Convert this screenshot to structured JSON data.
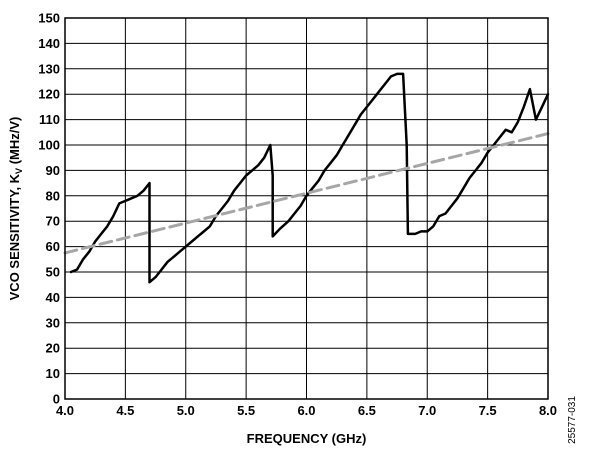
{
  "chart_data": {
    "type": "line",
    "title": "",
    "xlabel": "FREQUENCY (GHz)",
    "ylabel_main": "VCO SENSITIVITY, K",
    "ylabel_sub": "V",
    "ylabel_unit": " (MHz/V)",
    "xlim": [
      4.0,
      8.0
    ],
    "ylim": [
      0,
      150
    ],
    "x_ticks": [
      "4.0",
      "4.5",
      "5.0",
      "5.5",
      "6.0",
      "6.5",
      "7.0",
      "7.5",
      "8.0"
    ],
    "y_ticks": [
      "0",
      "10",
      "20",
      "30",
      "40",
      "50",
      "60",
      "70",
      "80",
      "90",
      "100",
      "110",
      "120",
      "130",
      "140",
      "150"
    ],
    "grid": true,
    "series": [
      {
        "style": "solid",
        "color": "#000000",
        "x": [
          4.05,
          4.1,
          4.15,
          4.2,
          4.25,
          4.3,
          4.35,
          4.4,
          4.45,
          4.5,
          4.55,
          4.6,
          4.65,
          4.7,
          4.7,
          4.75,
          4.8,
          4.85,
          4.9,
          4.95,
          5.0,
          5.05,
          5.1,
          5.15,
          5.2,
          5.25,
          5.3,
          5.35,
          5.4,
          5.45,
          5.5,
          5.55,
          5.6,
          5.65,
          5.7,
          5.72,
          5.72,
          5.78,
          5.85,
          5.9,
          5.95,
          6.0,
          6.05,
          6.1,
          6.15,
          6.2,
          6.25,
          6.3,
          6.35,
          6.4,
          6.45,
          6.5,
          6.55,
          6.6,
          6.65,
          6.7,
          6.75,
          6.8,
          6.83,
          6.84,
          6.9,
          6.95,
          7.0,
          7.05,
          7.1,
          7.15,
          7.2,
          7.25,
          7.3,
          7.35,
          7.4,
          7.45,
          7.5,
          7.55,
          7.6,
          7.65,
          7.7,
          7.75,
          7.8,
          7.85,
          7.9,
          7.95,
          8.0
        ],
        "y": [
          50,
          51,
          55,
          58,
          62,
          65,
          68,
          72,
          77,
          78,
          79,
          80,
          82,
          85,
          46,
          48,
          51,
          54,
          56,
          58,
          60,
          62,
          64,
          66,
          68,
          72,
          75,
          78,
          82,
          85,
          88,
          90,
          92,
          95,
          100,
          88,
          64,
          67,
          70,
          73,
          76,
          80,
          83,
          86,
          90,
          93,
          96,
          100,
          104,
          108,
          112,
          115,
          118,
          121,
          124,
          127,
          128,
          128,
          100,
          65,
          65,
          66,
          66,
          68,
          72,
          73,
          76,
          79,
          83,
          87,
          90,
          93,
          97,
          100,
          103,
          106,
          105,
          109,
          115,
          122,
          110,
          115,
          120
        ]
      },
      {
        "style": "dashed",
        "color": "#a6a6a6",
        "x": [
          4.0,
          8.0
        ],
        "y": [
          57.5,
          104.5
        ]
      }
    ]
  },
  "figure_id": "25577-031"
}
